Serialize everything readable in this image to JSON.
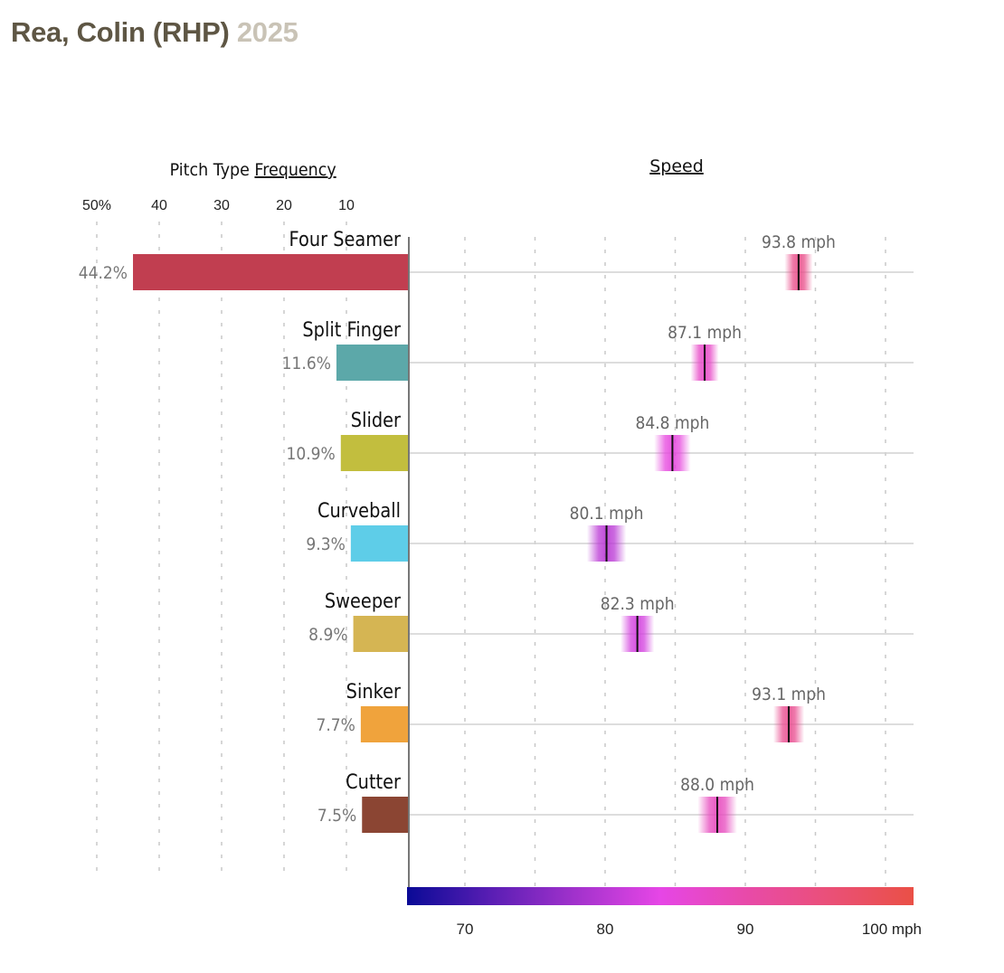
{
  "header": {
    "player": "Rea, Colin (RHP)",
    "season": "2025"
  },
  "colors": {
    "title": "#5e5644",
    "season": "#c9c3b6",
    "gridline": "#c8c8c8",
    "axis": "#777777",
    "rowline": "#d2d2d2",
    "speed_gradient": [
      "#0a0a96",
      "#5a1eb4",
      "#a232cc",
      "#e646e6",
      "#e84aaa",
      "#ea5078",
      "#ea5046"
    ]
  },
  "chart_data": [
    {
      "type": "bar",
      "title_prefix": "Pitch Type ",
      "title_link": "Frequency",
      "orientation": "horizontal-left",
      "xlim": [
        0,
        50
      ],
      "ticks": [
        {
          "value": 50,
          "label": "50%"
        },
        {
          "value": 40,
          "label": "40"
        },
        {
          "value": 30,
          "label": "30"
        },
        {
          "value": 20,
          "label": "20"
        },
        {
          "value": 10,
          "label": "10"
        }
      ],
      "grid": true,
      "categories": [
        "Four Seamer",
        "Split Finger",
        "Slider",
        "Curveball",
        "Sweeper",
        "Sinker",
        "Cutter"
      ],
      "values": [
        44.2,
        11.6,
        10.9,
        9.3,
        8.9,
        7.7,
        7.5
      ],
      "labels": [
        "44.2%",
        "11.6%",
        "10.9%",
        "9.3%",
        "8.9%",
        "7.7%",
        "7.5%"
      ],
      "bar_colors": [
        "#c13e50",
        "#5ca8a9",
        "#c2be3e",
        "#5ecde8",
        "#d5b553",
        "#f0a33c",
        "#8b4533"
      ]
    },
    {
      "type": "scatter",
      "title": "Speed",
      "xlim": [
        66,
        102
      ],
      "unit": "mph",
      "grid_values": [
        70,
        75,
        80,
        85,
        90,
        95,
        100
      ],
      "ticks": [
        {
          "value": 70,
          "label": "70"
        },
        {
          "value": 80,
          "label": "80"
        },
        {
          "value": 90,
          "label": "90"
        },
        {
          "value": 100,
          "label": "100 mph"
        }
      ],
      "grid": true,
      "categories": [
        "Four Seamer",
        "Split Finger",
        "Slider",
        "Curveball",
        "Sweeper",
        "Sinker",
        "Cutter"
      ],
      "values": [
        93.8,
        87.1,
        84.8,
        80.1,
        82.3,
        93.1,
        88.0
      ],
      "labels": [
        "93.8 mph",
        "87.1 mph",
        "84.8 mph",
        "80.1 mph",
        "82.3 mph",
        "93.1 mph",
        "88.0 mph"
      ],
      "spread": [
        1.0,
        1.0,
        1.3,
        1.4,
        1.2,
        1.1,
        1.4
      ],
      "legend": "colorbar-bottom"
    }
  ]
}
